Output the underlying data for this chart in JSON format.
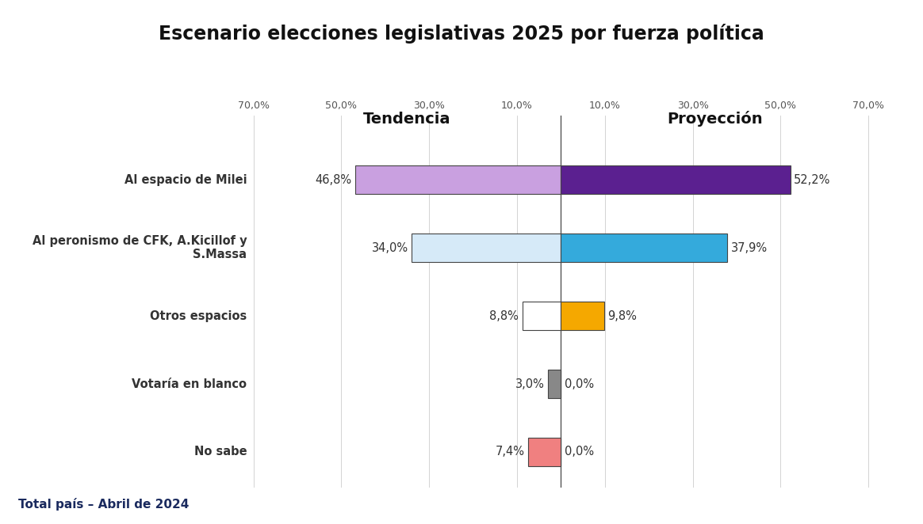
{
  "title": "Escenario elecciones legislativas 2025 por fuerza política",
  "tendencia_label": "Tendencia",
  "proyeccion_label": "Proyección",
  "categories": [
    "Al espacio de Milei",
    "Al peronismo de CFK, A.Kicillof y S.Massa",
    "Otros espacios",
    "Votaría en blanco",
    "No sabe"
  ],
  "tendencia_values": [
    46.8,
    34.0,
    8.8,
    3.0,
    7.4
  ],
  "proyeccion_values": [
    52.2,
    37.9,
    9.8,
    0.0,
    0.0
  ],
  "tendencia_colors": [
    "#c9a0e0",
    "#d6eaf8",
    "none",
    "#888888",
    "#f08080"
  ],
  "proyeccion_colors": [
    "#5b2090",
    "#34aadc",
    "#f5a800",
    "#888888",
    "#f08080"
  ],
  "tendencia_has_fill": [
    true,
    true,
    false,
    true,
    true
  ],
  "footnote": "Total país – Abril de 2024",
  "bg_color": "#ffffff",
  "axis_max": 70.0,
  "tick_positions": [
    -70,
    -50,
    -30,
    -10,
    10,
    30,
    50,
    70
  ],
  "tick_labels": [
    "70,0%",
    "50,0%",
    "30,0%",
    "10,0%",
    "10,0%",
    "30,0%",
    "50,0%",
    "70,0%"
  ],
  "title_fontsize": 17,
  "header_fontsize": 14,
  "label_fontsize": 10.5,
  "tick_fontsize": 9,
  "value_fontsize": 10.5,
  "footnote_fontsize": 11
}
